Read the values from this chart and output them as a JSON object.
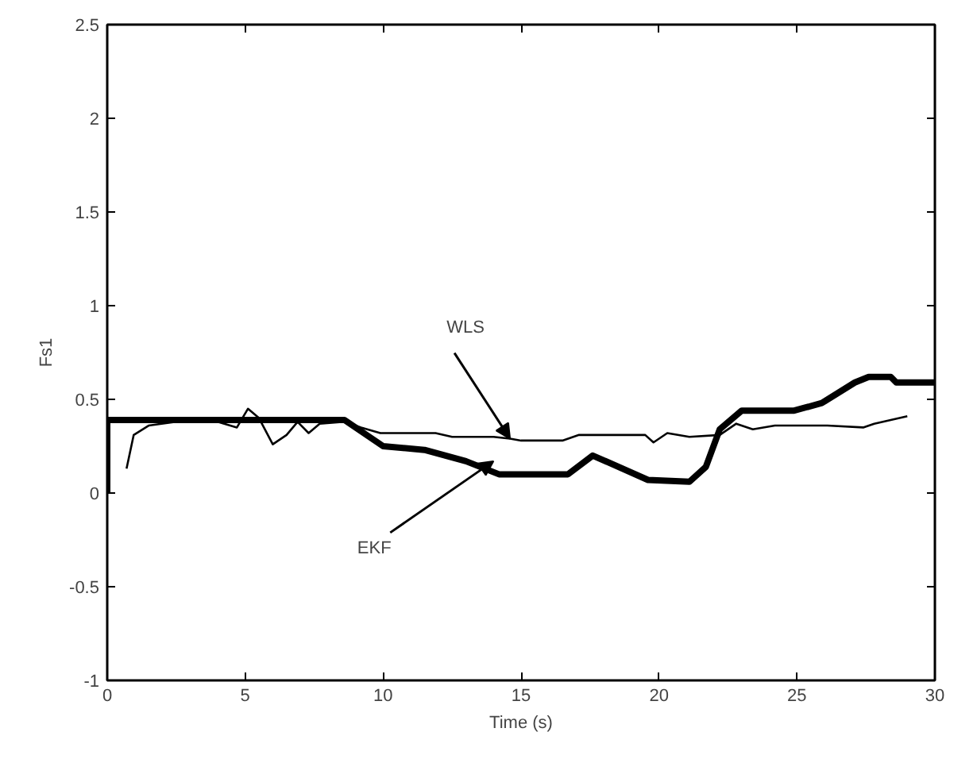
{
  "chart_data": {
    "type": "line",
    "xlabel": "Time (s)",
    "ylabel": "Fs1",
    "xlim": [
      0,
      30
    ],
    "ylim": [
      -1,
      2.5
    ],
    "xticks": [
      0,
      5,
      10,
      15,
      20,
      25,
      30
    ],
    "yticks": [
      -1,
      -0.5,
      0,
      0.5,
      1,
      1.5,
      2,
      2.5
    ],
    "grid": false,
    "marker": "none",
    "line_style": "solid",
    "series": [
      {
        "color": "#000000",
        "x": [
          0.7,
          0.96,
          1.5,
          2.5,
          4.0,
          4.7,
          5.1,
          5.5,
          6.0,
          6.5,
          6.9,
          7.3,
          7.7,
          8.6,
          9.2,
          9.9,
          11.9,
          12.5,
          14.0,
          14.6,
          15.0,
          16.5,
          17.1,
          19.5,
          19.8,
          20.3,
          21.1,
          22.2,
          22.8,
          23.4,
          24.2,
          26.1,
          27.4,
          27.8,
          29.0
        ],
        "values": [
          0.13,
          0.31,
          0.36,
          0.38,
          0.38,
          0.35,
          0.45,
          0.4,
          0.26,
          0.31,
          0.38,
          0.32,
          0.37,
          0.38,
          0.35,
          0.32,
          0.32,
          0.3,
          0.3,
          0.29,
          0.28,
          0.28,
          0.31,
          0.31,
          0.27,
          0.32,
          0.3,
          0.31,
          0.37,
          0.34,
          0.36,
          0.36,
          0.35,
          0.37,
          0.41
        ]
      },
      {
        "color": "#000000",
        "x": [
          0,
          0,
          8.6,
          10.0,
          11.5,
          13.0,
          14.2,
          16.7,
          17.6,
          19.6,
          21.1,
          21.7,
          22.2,
          23.0,
          24.9,
          25.9,
          27.1,
          27.6,
          28.4,
          28.6,
          30.0
        ],
        "values": [
          0,
          0.39,
          0.39,
          0.25,
          0.23,
          0.17,
          0.1,
          0.1,
          0.2,
          0.07,
          0.06,
          0.14,
          0.34,
          0.44,
          0.44,
          0.48,
          0.59,
          0.62,
          0.62,
          0.59,
          0.59
        ]
      }
    ],
    "annotations": [
      {
        "text": "WLS",
        "x": 14.6,
        "y": 0.29
      },
      {
        "text": "EKF",
        "x": 14.0,
        "y": 0.17
      }
    ]
  }
}
